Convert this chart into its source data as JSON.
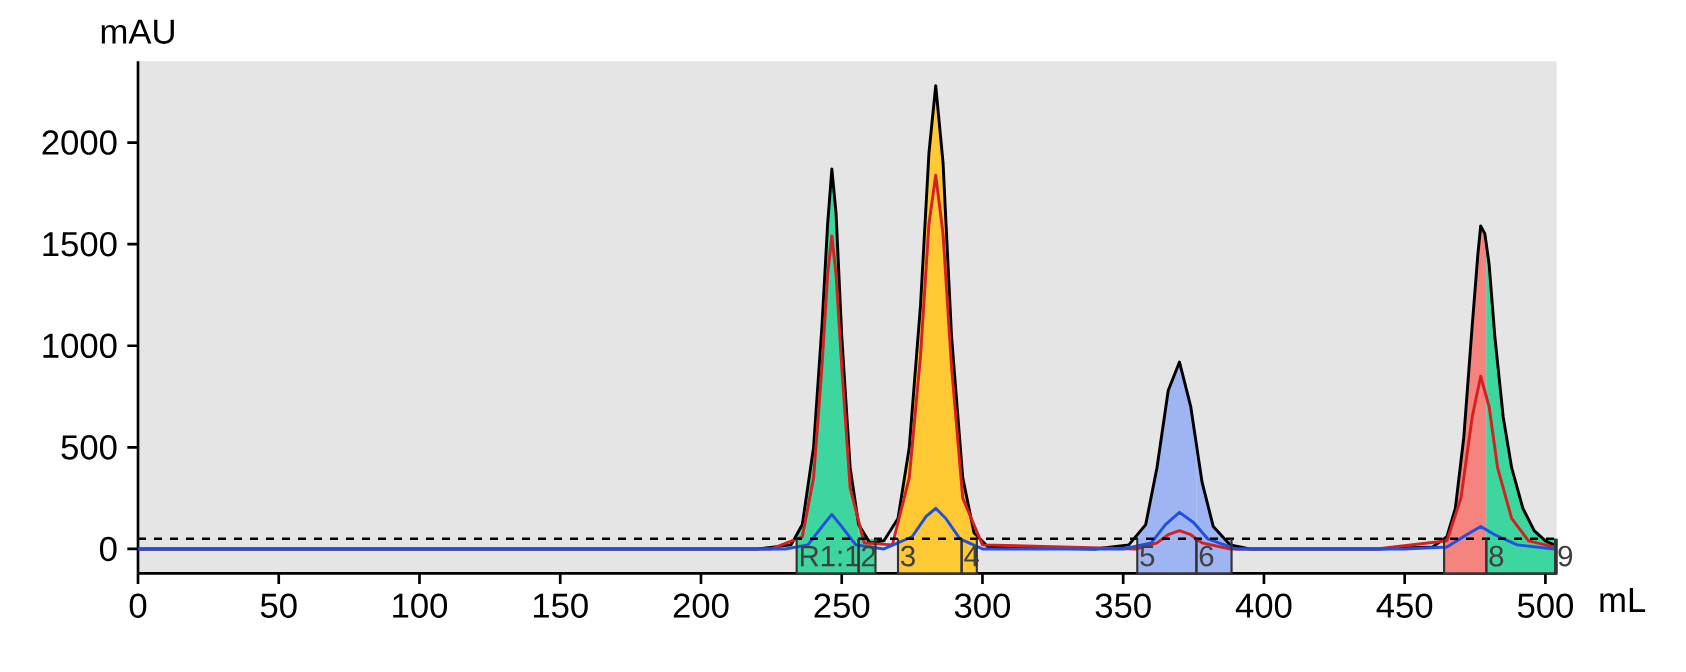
{
  "chart_data": {
    "type": "line",
    "xlabel": "mL",
    "ylabel": "mAU",
    "xlim": [
      0,
      504
    ],
    "ylim": [
      -120,
      2400
    ],
    "xticks": [
      0,
      50,
      100,
      150,
      200,
      250,
      300,
      350,
      400,
      450,
      500
    ],
    "yticks": [
      0,
      500,
      1000,
      1500,
      2000
    ],
    "series": [
      {
        "type": "area",
        "color": "#3dd69e",
        "x": [
          234,
          236,
          240,
          243,
          245,
          246.5,
          248,
          250,
          253,
          256
        ],
        "values": [
          60,
          120,
          500,
          1100,
          1600,
          1870,
          1650,
          1050,
          400,
          120
        ]
      },
      {
        "type": "area",
        "color": "#3dd69e",
        "x": [
          256,
          260,
          262
        ],
        "values": [
          120,
          30,
          30
        ]
      },
      {
        "type": "area",
        "color": "#ffc933",
        "x": [
          270,
          274,
          278,
          281,
          283.4,
          286,
          289,
          292.6
        ],
        "values": [
          150,
          500,
          1200,
          1950,
          2280,
          1900,
          1050,
          400
        ]
      },
      {
        "type": "area",
        "color": "#ffc933",
        "x": [
          292.6,
          297,
          298
        ],
        "values": [
          400,
          80,
          60
        ]
      },
      {
        "type": "area",
        "color": "#9fb4f2",
        "x": [
          355,
          358,
          362,
          366,
          370,
          374,
          376
        ],
        "values": [
          60,
          120,
          400,
          780,
          920,
          700,
          520
        ]
      },
      {
        "type": "area",
        "color": "#9fb4f2",
        "x": [
          376,
          378,
          382,
          388.5
        ],
        "values": [
          520,
          330,
          110,
          20
        ]
      },
      {
        "type": "area",
        "color": "#f5837e",
        "x": [
          464,
          465,
          468,
          471,
          474,
          476,
          477,
          478.5,
          479
        ],
        "values": [
          50,
          60,
          200,
          550,
          1100,
          1450,
          1590,
          1550,
          1500
        ]
      },
      {
        "type": "area",
        "color": "#3dd69e",
        "x": [
          479,
          480,
          482,
          485,
          488,
          492,
          496,
          500,
          503.5
        ],
        "values": [
          1500,
          1400,
          1050,
          650,
          400,
          200,
          90,
          40,
          20
        ]
      },
      {
        "color": "#000000",
        "x": [
          0,
          220,
          232,
          236,
          240,
          243,
          245,
          246.5,
          248,
          250,
          253,
          256,
          260,
          265,
          270,
          274,
          278,
          281,
          283.4,
          286,
          289,
          293,
          297,
          302,
          340,
          352,
          358,
          362,
          366,
          370,
          374,
          378,
          382,
          388,
          395,
          440,
          460,
          465,
          468,
          471,
          474,
          476,
          477,
          478.5,
          480,
          482,
          485,
          488,
          492,
          496,
          500,
          503
        ],
        "values": [
          0,
          0,
          20,
          120,
          500,
          1100,
          1600,
          1870,
          1650,
          1050,
          400,
          120,
          30,
          40,
          150,
          500,
          1200,
          1950,
          2280,
          1900,
          1050,
          350,
          80,
          10,
          0,
          20,
          120,
          400,
          780,
          920,
          700,
          330,
          110,
          20,
          0,
          0,
          10,
          60,
          200,
          550,
          1100,
          1450,
          1590,
          1550,
          1400,
          1050,
          650,
          400,
          200,
          90,
          40,
          20
        ]
      },
      {
        "color": "#d62020",
        "x": [
          0,
          225,
          236,
          240,
          243,
          245,
          246.5,
          248,
          250,
          253,
          258,
          268,
          274,
          278,
          281,
          283.4,
          286,
          289,
          293,
          300,
          355,
          362,
          366,
          370,
          374,
          378,
          388,
          440,
          465,
          470,
          474,
          477,
          480,
          483,
          488,
          494,
          503
        ],
        "values": [
          0,
          0,
          60,
          350,
          900,
          1350,
          1540,
          1350,
          900,
          300,
          30,
          20,
          350,
          950,
          1600,
          1840,
          1550,
          900,
          250,
          20,
          0,
          30,
          70,
          90,
          70,
          30,
          0,
          0,
          40,
          250,
          650,
          850,
          700,
          400,
          150,
          40,
          10
        ]
      },
      {
        "color": "#2050e0",
        "x": [
          0,
          230,
          238,
          243,
          246.5,
          250,
          255,
          265,
          275,
          280,
          283.4,
          287,
          292,
          300,
          350,
          360,
          365,
          370,
          375,
          380,
          390,
          450,
          465,
          472,
          477,
          482,
          490,
          503
        ],
        "values": [
          0,
          0,
          20,
          110,
          170,
          110,
          20,
          0,
          60,
          160,
          200,
          150,
          50,
          0,
          0,
          30,
          120,
          180,
          130,
          50,
          0,
          0,
          10,
          70,
          110,
          70,
          20,
          0
        ]
      }
    ],
    "ref_lines": [
      {
        "axis": "y",
        "value": 50,
        "line_style": "dashed",
        "color": "#000000"
      }
    ],
    "bands": [
      {
        "axis": "x",
        "from": 234,
        "to": 256,
        "label": "R1:1",
        "color": "#3dd69e"
      },
      {
        "axis": "x",
        "from": 256,
        "to": 262,
        "label": "2",
        "color": "#3dd69e"
      },
      {
        "axis": "x",
        "from": 270,
        "to": 292.6,
        "label": "3",
        "color": "#ffc933"
      },
      {
        "axis": "x",
        "from": 292.6,
        "to": 298,
        "label": "4",
        "color": "#ffc933"
      },
      {
        "axis": "x",
        "from": 355,
        "to": 376,
        "label": "5",
        "color": "#9fb4f2"
      },
      {
        "axis": "x",
        "from": 376,
        "to": 388.5,
        "label": "6",
        "color": "#9fb4f2"
      },
      {
        "axis": "x",
        "from": 464,
        "to": 479,
        "color": "#f5837e"
      },
      {
        "axis": "x",
        "from": 479,
        "to": 503.5,
        "label": "8",
        "color": "#3dd69e"
      },
      {
        "axis": "x",
        "from": 503.5,
        "to": 504,
        "label": "9",
        "color": "#3dd69e"
      }
    ]
  }
}
